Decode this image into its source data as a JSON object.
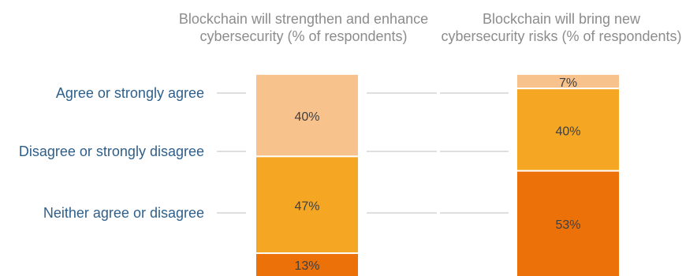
{
  "chart_data": {
    "type": "bar",
    "stacked": true,
    "categories": [
      "Blockchain will strengthen and enhance cybersecurity (% of respondents)",
      "Blockchain will bring new cybersecurity risks (% of respondents)"
    ],
    "category_title_lines": [
      [
        "Blockchain will strengthen and enhance",
        "cybersecurity (% of respondents)"
      ],
      [
        "Blockchain will bring new",
        "cybersecurity risks (% of respondents)"
      ]
    ],
    "series": [
      {
        "name": "Neither agree or disagree",
        "color": "#ed7109",
        "values": [
          13,
          53
        ]
      },
      {
        "name": "Disagree or strongly disagree",
        "color": "#f5a623",
        "values": [
          47,
          40
        ]
      },
      {
        "name": "Agree or strongly agree",
        "color": "#f8c28c",
        "values": [
          40,
          7
        ]
      }
    ],
    "value_suffix": "%",
    "legend_position": "left",
    "grid": false,
    "ylim": [
      0,
      100
    ]
  }
}
